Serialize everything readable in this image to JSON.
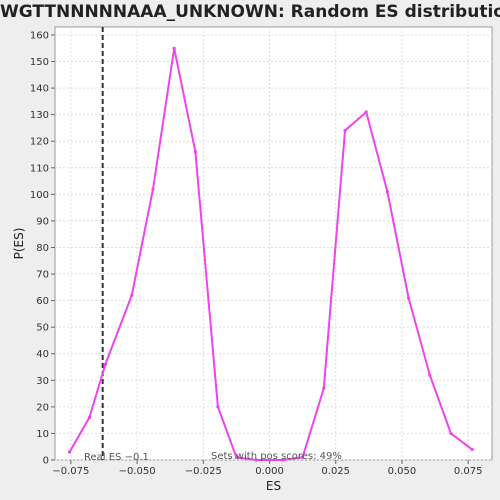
{
  "title": "WGTTNNNNNAAA_UNKNOWN: Random ES distribution",
  "chart_data": {
    "type": "line",
    "title": "WGTTNNNNNAAA_UNKNOWN: Random ES distribution",
    "xlabel": "ES",
    "ylabel": "P(ES)",
    "xlim": [
      -0.081,
      0.084
    ],
    "ylim": [
      0,
      163
    ],
    "xticks": [
      -0.075,
      -0.05,
      -0.025,
      0.0,
      0.025,
      0.05,
      0.075
    ],
    "xtick_labels": [
      "−0.075",
      "−0.050",
      "−0.025",
      "0.000",
      "0.025",
      "0.050",
      "0.075"
    ],
    "yticks": [
      0,
      10,
      20,
      30,
      40,
      50,
      60,
      70,
      80,
      90,
      100,
      110,
      120,
      130,
      140,
      150,
      160
    ],
    "grid": true,
    "line_color": "#ee44ee",
    "series": [
      {
        "x": [
          -0.0755,
          -0.068,
          -0.062,
          -0.052,
          -0.044,
          -0.036,
          -0.028,
          -0.0195,
          -0.0125,
          -0.005,
          0.0,
          0.005,
          0.0125,
          0.0205,
          0.0285,
          0.0365,
          0.0445,
          0.0525,
          0.0605,
          0.0685,
          0.0765
        ],
        "y": [
          3,
          16,
          36,
          62,
          102,
          155,
          116,
          20,
          1,
          0,
          0,
          0,
          1,
          27,
          124,
          131,
          101,
          61,
          32,
          10,
          4
        ]
      }
    ],
    "real_es": -0.063,
    "annotations": {
      "real_es_label": "Real ES −0.1",
      "pos_scores_label": "Sets with pos scores: 49%"
    }
  }
}
